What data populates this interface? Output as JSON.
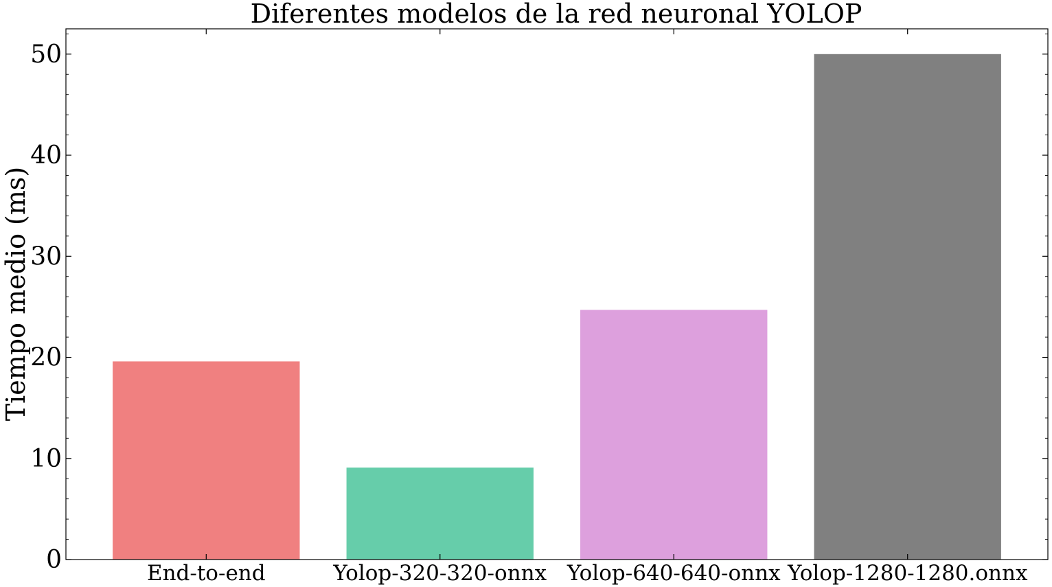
{
  "chart_data": {
    "type": "bar",
    "title": "Diferentes modelos de la red neuronal YOLOP",
    "xlabel": "",
    "ylabel": "Tiempo medio (ms)",
    "categories": [
      "End-to-end",
      "Yolop-320-320-onnx",
      "Yolop-640-640-onnx",
      "Yolop-1280-1280.onnx"
    ],
    "values": [
      19.6,
      9.1,
      24.7,
      50.0
    ],
    "colors": [
      "#f08080",
      "#66cdaa",
      "#dda0dd",
      "#808080"
    ],
    "ylim": [
      0,
      52.5
    ],
    "yticks": [
      0,
      10,
      20,
      30,
      40,
      50
    ],
    "grid": false,
    "legend": "none"
  }
}
